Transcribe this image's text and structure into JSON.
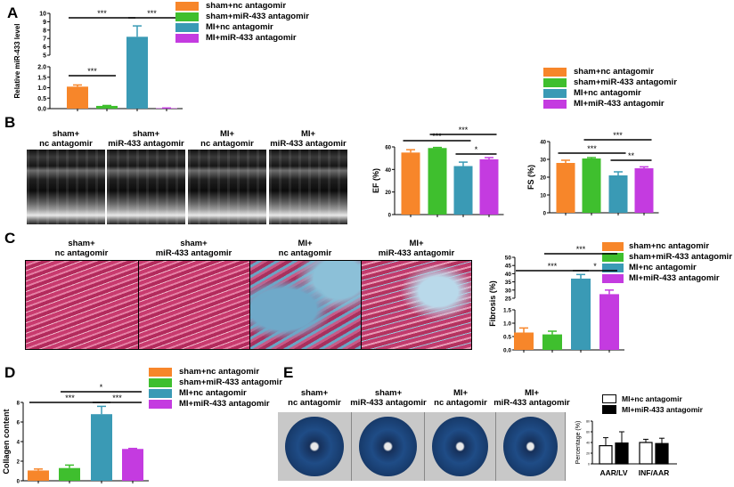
{
  "panels": {
    "A": {
      "label": "A"
    },
    "B": {
      "label": "B",
      "images": [
        {
          "caption1": "sham+",
          "caption2": "nc antagomir"
        },
        {
          "caption1": "sham+",
          "caption2": "miR-433 antagomir"
        },
        {
          "caption1": "MI+",
          "caption2": "nc antagomir"
        },
        {
          "caption1": "MI+",
          "caption2": "miR-433 antagomir"
        }
      ]
    },
    "C": {
      "label": "C",
      "images": [
        {
          "caption1": "sham+",
          "caption2": "nc antagomir"
        },
        {
          "caption1": "sham+",
          "caption2": "miR-433 antagomir"
        },
        {
          "caption1": "MI+",
          "caption2": "nc antagomir"
        },
        {
          "caption1": "MI+",
          "caption2": "miR-433 antagomir"
        }
      ]
    },
    "D": {
      "label": "D"
    },
    "E": {
      "label": "E",
      "images": [
        {
          "caption1": "sham+",
          "caption2": "nc antagomir"
        },
        {
          "caption1": "sham+",
          "caption2": "miR-433 antagomir"
        },
        {
          "caption1": "MI+",
          "caption2": "nc antagomir"
        },
        {
          "caption1": "MI+",
          "caption2": "miR-433 antagomir"
        }
      ]
    }
  },
  "legends": {
    "groups": [
      {
        "label": "sham+nc antagomir",
        "color": "#f7862a"
      },
      {
        "label": "sham+miR-433 antagomir",
        "color": "#3fbf2e"
      },
      {
        "label": "MI+nc antagomir",
        "color": "#3a9ab5"
      },
      {
        "label": "MI+miR-433 antagomir",
        "color": "#c43be0"
      }
    ],
    "E": [
      {
        "label": "MI+nc antagomir",
        "color": "#ffffff"
      },
      {
        "label": "MI+miR-433 antagomir",
        "color": "#000000"
      }
    ]
  },
  "chart_data": [
    {
      "id": "A",
      "type": "bar",
      "ylabel": "Relative miR-433 level",
      "broken_axis": true,
      "segments": [
        {
          "range": [
            0,
            2
          ],
          "ticks": [
            "0.0",
            "0.5",
            "1.0",
            "1.5",
            "2.0"
          ]
        },
        {
          "range": [
            5,
            10
          ],
          "ticks": [
            "5",
            "6",
            "7",
            "8",
            "9",
            "10"
          ]
        }
      ],
      "values": [
        1.05,
        0.13,
        7.2,
        0.02
      ],
      "errors": [
        0.08,
        0.02,
        1.3,
        0.01
      ],
      "significance": [
        {
          "from": 0,
          "to": 1,
          "label": "***"
        },
        {
          "from": 0,
          "to": 2,
          "label": "***"
        },
        {
          "from": 2,
          "to": 3,
          "label": "***"
        }
      ]
    },
    {
      "id": "EF",
      "type": "bar",
      "ylabel": "EF (%)",
      "ylim": [
        0,
        60
      ],
      "ticks": [
        "0",
        "20",
        "40",
        "60"
      ],
      "values": [
        55,
        59,
        43,
        49
      ],
      "errors": [
        2.5,
        0.5,
        3.5,
        1.5
      ],
      "significance": [
        {
          "from": 0,
          "to": 2,
          "label": "***"
        },
        {
          "from": 1,
          "to": 3,
          "label": "***"
        },
        {
          "from": 2,
          "to": 3,
          "label": "*"
        }
      ]
    },
    {
      "id": "FS",
      "type": "bar",
      "ylabel": "FS (%)",
      "ylim": [
        0,
        40
      ],
      "ticks": [
        "0",
        "10",
        "20",
        "30",
        "40"
      ],
      "values": [
        28,
        30.5,
        21,
        25
      ],
      "errors": [
        1.5,
        0.5,
        2,
        0.8
      ],
      "significance": [
        {
          "from": 0,
          "to": 2,
          "label": "***"
        },
        {
          "from": 1,
          "to": 3,
          "label": "***"
        },
        {
          "from": 2,
          "to": 3,
          "label": "**"
        }
      ]
    },
    {
      "id": "C",
      "type": "bar",
      "ylabel": "Fibrosis (%)",
      "broken_axis": true,
      "segments": [
        {
          "range": [
            0,
            1.5
          ],
          "ticks": [
            "0.0",
            "0.5",
            "1.0",
            "1.5"
          ]
        },
        {
          "range": [
            25,
            50
          ],
          "ticks": [
            "25",
            "30",
            "35",
            "40",
            "45",
            "50"
          ]
        }
      ],
      "values": [
        0.65,
        0.58,
        37,
        27.5
      ],
      "errors": [
        0.17,
        0.12,
        2.5,
        2.5
      ],
      "significance": [
        {
          "from": 0,
          "to": 2,
          "label": "***"
        },
        {
          "from": 1,
          "to": 3,
          "label": "***"
        },
        {
          "from": 2,
          "to": 3,
          "label": "*"
        }
      ]
    },
    {
      "id": "D",
      "type": "bar",
      "ylabel": "Collagen  content",
      "ylim": [
        0,
        8
      ],
      "ticks": [
        "0",
        "2",
        "4",
        "6",
        "8"
      ],
      "values": [
        1.05,
        1.3,
        6.8,
        3.25
      ],
      "errors": [
        0.15,
        0.3,
        0.8,
        0.05
      ],
      "significance": [
        {
          "from": 0,
          "to": 2,
          "label": "***"
        },
        {
          "from": 1,
          "to": 3,
          "label": "*"
        },
        {
          "from": 2,
          "to": 3,
          "label": "***"
        }
      ]
    },
    {
      "id": "E",
      "type": "bar",
      "ylabel": "Percentage (%)",
      "ylim": [
        0,
        80
      ],
      "ticks": [
        "0",
        "20",
        "40",
        "60",
        "80"
      ],
      "categories": [
        "AAR/LV",
        "INF/AAR"
      ],
      "series": [
        {
          "name": "MI+nc antagomir",
          "values": [
            34,
            40
          ],
          "errors": [
            15,
            6
          ]
        },
        {
          "name": "MI+miR-433 antagomir",
          "values": [
            39,
            38
          ],
          "errors": [
            21,
            10
          ]
        }
      ]
    }
  ]
}
